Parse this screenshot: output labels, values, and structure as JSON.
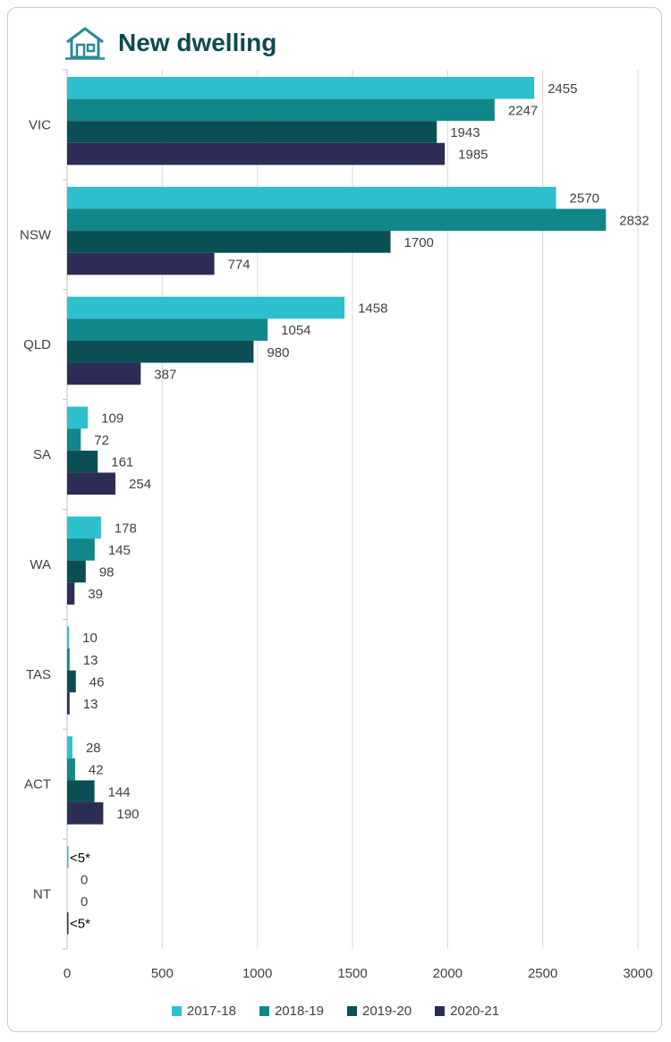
{
  "chart_data": {
    "type": "bar",
    "orientation": "horizontal",
    "title": "New dwelling",
    "categories": [
      "VIC",
      "NSW",
      "QLD",
      "SA",
      "WA",
      "TAS",
      "ACT",
      "NT"
    ],
    "series": [
      {
        "name": "2017-18",
        "color": "#2ebfcc",
        "values": [
          2455,
          2570,
          1458,
          109,
          178,
          10,
          28,
          4
        ],
        "labels": [
          "2455",
          "2570",
          "1458",
          "109",
          "178",
          "10",
          "28",
          "<5*"
        ]
      },
      {
        "name": "2018-19",
        "color": "#12878a",
        "values": [
          2247,
          2832,
          1054,
          72,
          145,
          13,
          42,
          0
        ],
        "labels": [
          "2247",
          "2832",
          "1054",
          "72",
          "145",
          "13",
          "42",
          "0"
        ]
      },
      {
        "name": "2019-20",
        "color": "#0b4f55",
        "values": [
          1943,
          1700,
          980,
          161,
          98,
          46,
          144,
          0
        ],
        "labels": [
          "1943",
          "1700",
          "980",
          "161",
          "98",
          "46",
          "144",
          "0"
        ]
      },
      {
        "name": "2020-21",
        "color": "#2c2c56",
        "values": [
          1985,
          774,
          387,
          254,
          39,
          13,
          190,
          4
        ],
        "labels": [
          "1985",
          "774",
          "387",
          "254",
          "39",
          "13",
          "190",
          "<5*"
        ]
      }
    ],
    "xlim": [
      0,
      3000
    ],
    "xticks": [
      "0",
      "500",
      "1000",
      "1500",
      "2000",
      "2500",
      "3000"
    ],
    "grid": true,
    "legend": "bottom"
  },
  "icons": {
    "title_icon": "house-icon"
  }
}
